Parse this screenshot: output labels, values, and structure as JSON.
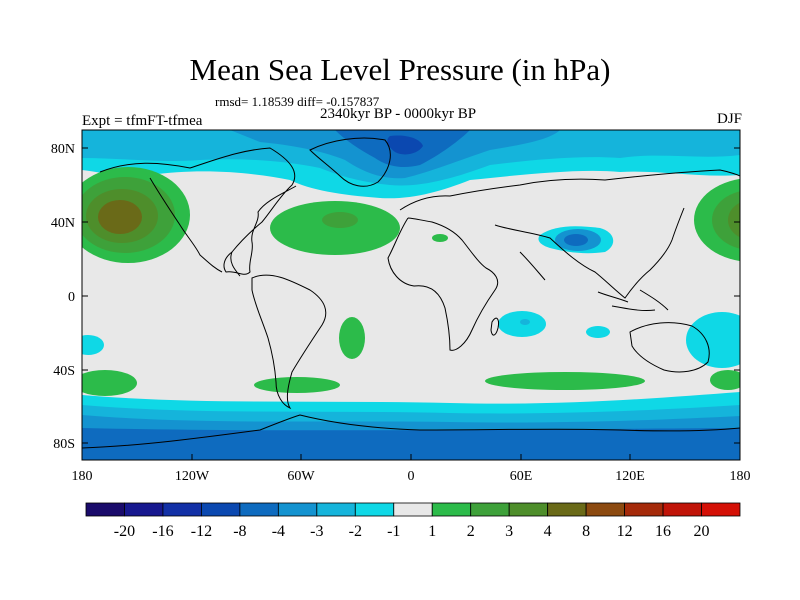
{
  "title": "Mean Sea Level Pressure (in hPa)",
  "stats": "rmsd= 1.18539 diff= -0.157837",
  "experiment": "Expt = tfmFT-tfmea",
  "period": "2340kyr BP - 0000kyr BP",
  "season": "DJF",
  "lat_labels": [
    "80N",
    "40N",
    "0",
    "40S",
    "80S"
  ],
  "lon_labels": [
    "180",
    "120W",
    "60W",
    "0",
    "60E",
    "120E",
    "180"
  ],
  "colorbar": {
    "labels": [
      "-20",
      "-16",
      "-12",
      "-8",
      "-4",
      "-3",
      "-2",
      "-1",
      "1",
      "2",
      "3",
      "4",
      "8",
      "12",
      "16",
      "20"
    ],
    "colors": [
      "#1a0b6b",
      "#17188f",
      "#1230a6",
      "#0b48b0",
      "#0e6bbf",
      "#1493d0",
      "#15b4db",
      "#0fd8e6",
      "#e8e8e8",
      "#2cbb4a",
      "#3ea13a",
      "#4e8e2b",
      "#6a6a18",
      "#8c4a10",
      "#a52a0a",
      "#c01408",
      "#d41006"
    ]
  }
}
